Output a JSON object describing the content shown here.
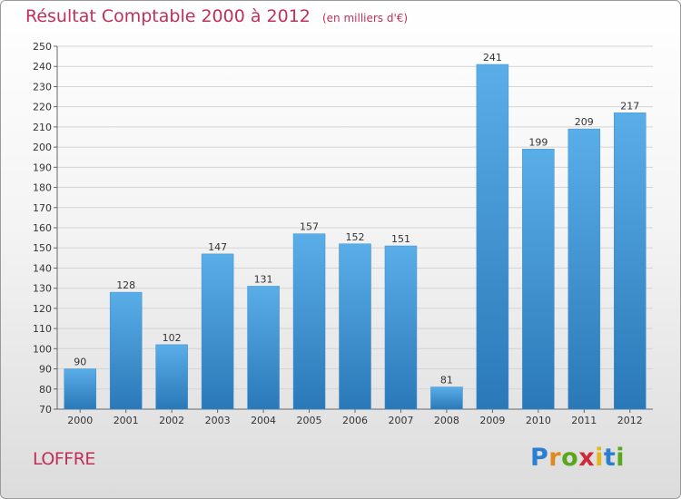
{
  "title": "Résultat Comptable 2000 à 2012",
  "unit": "(en milliers d'€)",
  "commune": "LOFFRE",
  "logo": {
    "letters": [
      {
        "ch": "P",
        "color": "#2a7fd0"
      },
      {
        "ch": "r",
        "color": "#e08a1e"
      },
      {
        "ch": "o",
        "color": "#5aa61e"
      },
      {
        "ch": "x",
        "color": "#d02a3a"
      },
      {
        "ch": "i",
        "color": "#e0b81e"
      },
      {
        "ch": "t",
        "color": "#2a7fd0"
      },
      {
        "ch": "i",
        "color": "#5aa61e"
      }
    ]
  },
  "colors": {
    "bar_top": "#5aaee8",
    "bar_bottom": "#2a78b8",
    "title": "#c0305a"
  },
  "chart_data": {
    "type": "bar",
    "categories": [
      "2000",
      "2001",
      "2002",
      "2003",
      "2004",
      "2005",
      "2006",
      "2007",
      "2008",
      "2009",
      "2010",
      "2011",
      "2012"
    ],
    "values": [
      90,
      128,
      102,
      147,
      131,
      157,
      152,
      151,
      81,
      241,
      199,
      209,
      217
    ],
    "ylim": [
      70,
      250
    ],
    "yticks": [
      70,
      80,
      90,
      100,
      110,
      120,
      130,
      140,
      150,
      160,
      170,
      180,
      190,
      200,
      210,
      220,
      230,
      240,
      250
    ],
    "grid": true
  }
}
